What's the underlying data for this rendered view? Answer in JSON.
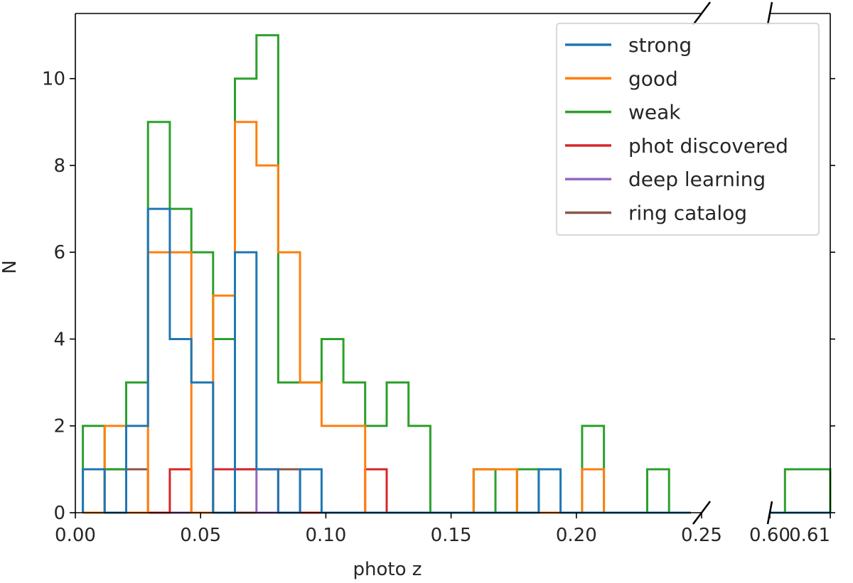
{
  "chart_data": {
    "type": "histogram",
    "title": "",
    "xlabel": "photo z",
    "ylabel": "N",
    "ylim": [
      0,
      11.5
    ],
    "yticks": [
      0,
      2,
      4,
      6,
      8,
      10
    ],
    "ytick_labels": [
      "0",
      "2",
      "4",
      "6",
      "8",
      "10"
    ],
    "broken_axis": true,
    "left_panel": {
      "xlim": [
        0.0,
        0.25
      ],
      "xticks": [
        0.0,
        0.05,
        0.1,
        0.15,
        0.2,
        0.25
      ],
      "xtick_labels": [
        "0.00",
        "0.05",
        "0.10",
        "0.15",
        "0.20",
        "0.25"
      ],
      "bin_edges": [
        0.003,
        0.0117,
        0.0203,
        0.029,
        0.0377,
        0.0463,
        0.055,
        0.0637,
        0.0723,
        0.081,
        0.0897,
        0.0983,
        0.107,
        0.1157,
        0.1243,
        0.133,
        0.1417,
        0.1503,
        0.159,
        0.1677,
        0.1763,
        0.185,
        0.1937,
        0.2023,
        0.211,
        0.2197,
        0.2283,
        0.237,
        0.2457
      ]
    },
    "right_panel": {
      "xlim": [
        0.6,
        0.61
      ],
      "xticks": [
        0.6,
        0.61
      ],
      "xtick_labels": [
        "0.60",
        "0.61"
      ],
      "bin_edges": [
        0.6,
        0.6025,
        0.605,
        0.61
      ]
    },
    "legend": {
      "position": "top-right",
      "entries": [
        "strong",
        "good",
        "weak",
        "phot discovered",
        "deep learning",
        "ring catalog"
      ]
    },
    "series": [
      {
        "name": "strong",
        "color": "#1f77b4",
        "left_counts": [
          1,
          0,
          2,
          7,
          4,
          3,
          0,
          6,
          1,
          0,
          1,
          0,
          0,
          0,
          0,
          0,
          0,
          0,
          0,
          0,
          0,
          1,
          0,
          0,
          0,
          0,
          0,
          0
        ],
        "right_counts": [
          0,
          0,
          0
        ]
      },
      {
        "name": "good",
        "color": "#ff7f0e",
        "left_counts": [
          0,
          2,
          0,
          6,
          6,
          0,
          5,
          9,
          8,
          6,
          3,
          2,
          2,
          0,
          0,
          0,
          0,
          0,
          1,
          1,
          0,
          0,
          0,
          1,
          0,
          0,
          0,
          0
        ],
        "right_counts": [
          0,
          0,
          0
        ]
      },
      {
        "name": "weak",
        "color": "#2ca02c",
        "left_counts": [
          2,
          1,
          3,
          9,
          7,
          6,
          4,
          10,
          11,
          3,
          3,
          4,
          3,
          2,
          3,
          2,
          0,
          0,
          1,
          0,
          1,
          0,
          0,
          2,
          0,
          0,
          1,
          0
        ],
        "right_counts": [
          0,
          1,
          1
        ]
      },
      {
        "name": "phot discovered",
        "color": "#d62728",
        "left_counts": [
          0,
          0,
          0,
          0,
          1,
          0,
          1,
          1,
          1,
          0,
          0,
          0,
          0,
          1,
          0,
          0,
          0,
          0,
          0,
          0,
          0,
          0,
          0,
          0,
          0,
          0,
          0,
          0
        ],
        "right_counts": [
          0,
          0,
          0
        ]
      },
      {
        "name": "deep learning",
        "color": "#9467bd",
        "left_counts": [
          0,
          0,
          0,
          0,
          0,
          0,
          0,
          1,
          0,
          0,
          0,
          0,
          0,
          0,
          0,
          0,
          0,
          0,
          0,
          0,
          0,
          0,
          0,
          0,
          0,
          0,
          0,
          0
        ],
        "right_counts": [
          0,
          0,
          0
        ]
      },
      {
        "name": "ring catalog",
        "color": "#8c564b",
        "left_counts": [
          0,
          1,
          1,
          0,
          0,
          0,
          0,
          0,
          0,
          1,
          0,
          0,
          0,
          0,
          0,
          0,
          0,
          0,
          0,
          0,
          0,
          0,
          0,
          0,
          0,
          0,
          0,
          0
        ],
        "right_counts": [
          0,
          0,
          0
        ]
      }
    ]
  }
}
